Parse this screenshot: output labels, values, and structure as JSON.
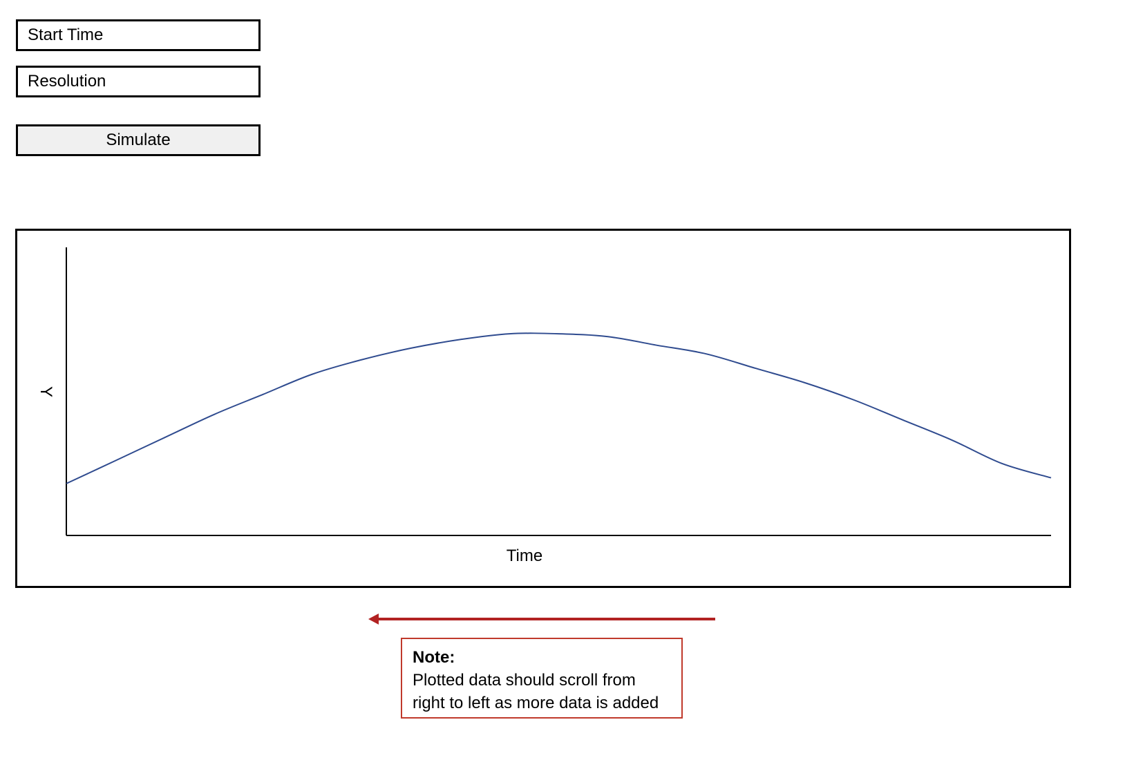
{
  "form": {
    "start_time_placeholder": "Start Time",
    "resolution_placeholder": "Resolution",
    "simulate_label": "Simulate"
  },
  "chart_data": {
    "type": "line",
    "title": "",
    "xlabel": "Time",
    "ylabel": "Y",
    "grid": false,
    "legend": "none",
    "x": [
      0,
      0.05,
      0.1,
      0.15,
      0.2,
      0.25,
      0.3,
      0.35,
      0.4,
      0.45,
      0.5,
      0.55,
      0.6,
      0.65,
      0.7,
      0.75,
      0.8,
      0.85,
      0.9,
      0.95,
      1.0
    ],
    "series": [
      {
        "values": [
          0.18,
          0.26,
          0.34,
          0.42,
          0.49,
          0.56,
          0.61,
          0.65,
          0.68,
          0.7,
          0.7,
          0.69,
          0.66,
          0.63,
          0.58,
          0.53,
          0.47,
          0.4,
          0.33,
          0.25,
          0.2
        ]
      }
    ],
    "xlim": [
      0,
      1
    ],
    "ylim": [
      0,
      1
    ],
    "colors": {
      "line": "#2f4b8f"
    }
  },
  "note": {
    "title": "Note:",
    "body": "Plotted data should scroll from right to left as more data is added",
    "border_color": "#c0392b",
    "arrow_color": "#b22222"
  }
}
